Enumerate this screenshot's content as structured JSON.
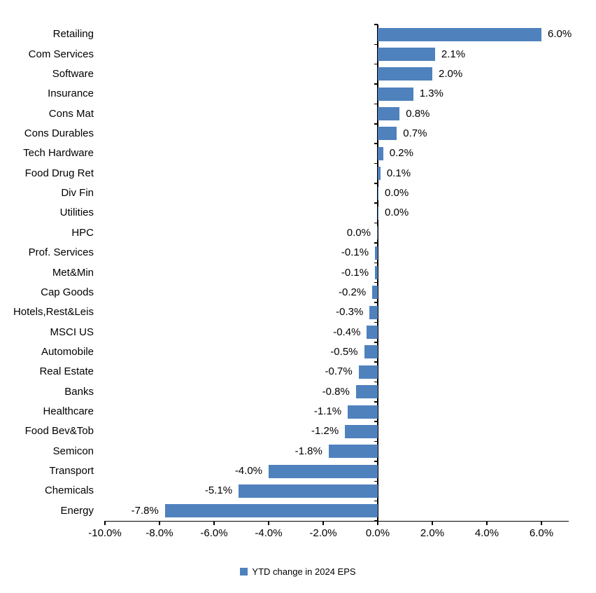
{
  "chart_data": {
    "type": "bar",
    "orientation": "horizontal",
    "title": "",
    "xlabel": "",
    "ylabel": "",
    "grid": false,
    "bar_color": "#4F81BD",
    "xlim": [
      -10,
      7
    ],
    "legend_position": "bottom",
    "legend_label": "YTD change in 2024 EPS",
    "bars": [
      {
        "category": "Retailing",
        "value": 6.0,
        "label": "6.0%",
        "side": "right"
      },
      {
        "category": "Com Services",
        "value": 2.1,
        "label": "2.1%",
        "side": "right"
      },
      {
        "category": "Software",
        "value": 2.0,
        "label": "2.0%",
        "side": "right"
      },
      {
        "category": "Insurance",
        "value": 1.3,
        "label": "1.3%",
        "side": "right"
      },
      {
        "category": "Cons Mat",
        "value": 0.8,
        "label": "0.8%",
        "side": "right"
      },
      {
        "category": "Cons Durables",
        "value": 0.7,
        "label": "0.7%",
        "side": "right"
      },
      {
        "category": "Tech Hardware",
        "value": 0.2,
        "label": "0.2%",
        "side": "right"
      },
      {
        "category": "Food Drug Ret",
        "value": 0.1,
        "label": "0.1%",
        "side": "right"
      },
      {
        "category": "Div Fin",
        "value": 0.0,
        "label": "0.0%",
        "side": "right"
      },
      {
        "category": "Utilities",
        "value": 0.0,
        "label": "0.0%",
        "side": "right"
      },
      {
        "category": "HPC",
        "value": 0.0,
        "label": "0.0%",
        "side": "left"
      },
      {
        "category": "Prof. Services",
        "value": -0.1,
        "label": "-0.1%",
        "side": "left"
      },
      {
        "category": "Met&Min",
        "value": -0.1,
        "label": "-0.1%",
        "side": "left"
      },
      {
        "category": "Cap Goods",
        "value": -0.2,
        "label": "-0.2%",
        "side": "left"
      },
      {
        "category": "Hotels,Rest&Leis",
        "value": -0.3,
        "label": "-0.3%",
        "side": "left"
      },
      {
        "category": "MSCI US",
        "value": -0.4,
        "label": "-0.4%",
        "side": "left"
      },
      {
        "category": "Automobile",
        "value": -0.5,
        "label": "-0.5%",
        "side": "left"
      },
      {
        "category": "Real Estate",
        "value": -0.7,
        "label": "-0.7%",
        "side": "left"
      },
      {
        "category": "Banks",
        "value": -0.8,
        "label": "-0.8%",
        "side": "left"
      },
      {
        "category": "Healthcare",
        "value": -1.1,
        "label": "-1.1%",
        "side": "left"
      },
      {
        "category": "Food Bev&Tob",
        "value": -1.2,
        "label": "-1.2%",
        "side": "left"
      },
      {
        "category": "Semicon",
        "value": -1.8,
        "label": "-1.8%",
        "side": "left"
      },
      {
        "category": "Transport",
        "value": -4.0,
        "label": "-4.0%",
        "side": "left"
      },
      {
        "category": "Chemicals",
        "value": -5.1,
        "label": "-5.1%",
        "side": "left"
      },
      {
        "category": "Energy",
        "value": -7.8,
        "label": "-7.8%",
        "side": "left"
      }
    ],
    "x_axis": {
      "ticks": [
        {
          "label": "-10.0%",
          "value": -10
        },
        {
          "label": "-8.0%",
          "value": -8
        },
        {
          "label": "-6.0%",
          "value": -6
        },
        {
          "label": "-4.0%",
          "value": -4
        },
        {
          "label": "-2.0%",
          "value": -2
        },
        {
          "label": "0.0%",
          "value": 0
        },
        {
          "label": "2.0%",
          "value": 2
        },
        {
          "label": "4.0%",
          "value": 4
        },
        {
          "label": "6.0%",
          "value": 6
        }
      ]
    }
  }
}
